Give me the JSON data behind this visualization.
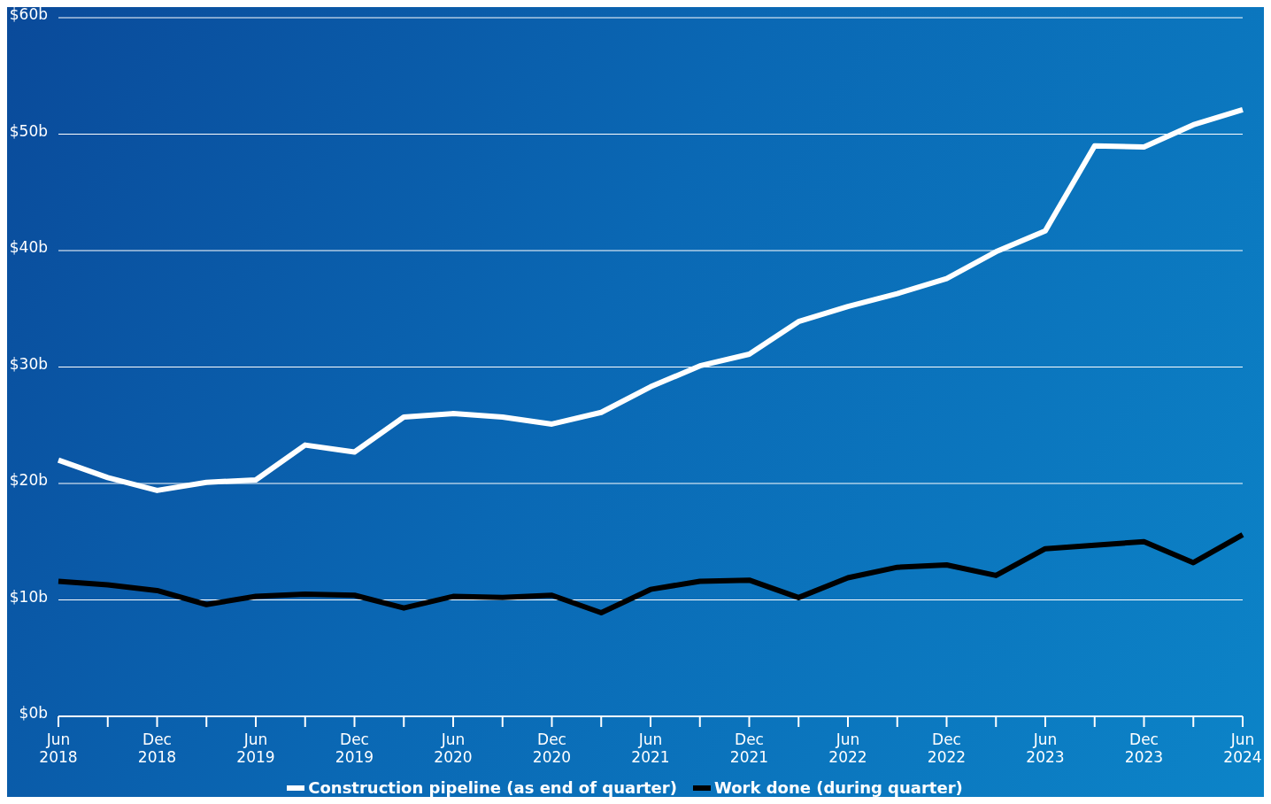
{
  "chart_data": {
    "type": "line",
    "categories": [
      "Jun 2018",
      null,
      "Dec 2018",
      null,
      "Jun 2019",
      null,
      "Dec 2019",
      null,
      "Jun 2020",
      null,
      "Dec 2020",
      null,
      "Jun 2021",
      null,
      "Dec 2021",
      null,
      "Jun 2022",
      null,
      "Dec 2022",
      null,
      "Jun 2023",
      null,
      "Dec 2023",
      null,
      "Jun 2024"
    ],
    "series": [
      {
        "name": "Construction pipeline (as end of quarter)",
        "color": "#ffffff",
        "values": [
          22.0,
          20.5,
          19.4,
          20.1,
          20.3,
          23.3,
          22.7,
          25.7,
          26.0,
          25.7,
          25.1,
          26.1,
          28.3,
          30.1,
          31.1,
          33.9,
          35.2,
          36.3,
          37.6,
          39.9,
          41.7,
          49.0,
          48.9,
          50.8,
          52.1
        ]
      },
      {
        "name": "Work done (during quarter)",
        "color": "#000000",
        "values": [
          11.6,
          11.3,
          10.8,
          9.6,
          10.3,
          10.5,
          10.4,
          9.3,
          10.3,
          10.2,
          10.4,
          8.9,
          10.9,
          11.6,
          11.7,
          10.2,
          11.9,
          12.8,
          13.0,
          12.1,
          14.4,
          14.7,
          15.0,
          13.2,
          15.6
        ]
      }
    ],
    "ylim": [
      0,
      60
    ],
    "yticks": [
      {
        "value": 0,
        "label": "$0b"
      },
      {
        "value": 10,
        "label": "$10b"
      },
      {
        "value": 20,
        "label": "$20b"
      },
      {
        "value": 30,
        "label": "$30b"
      },
      {
        "value": 40,
        "label": "$40b"
      },
      {
        "value": 50,
        "label": "$50b"
      },
      {
        "value": 60,
        "label": "$60b"
      }
    ],
    "grid": "y",
    "legend": "bottom",
    "marker": "none",
    "line_style": "solid"
  }
}
